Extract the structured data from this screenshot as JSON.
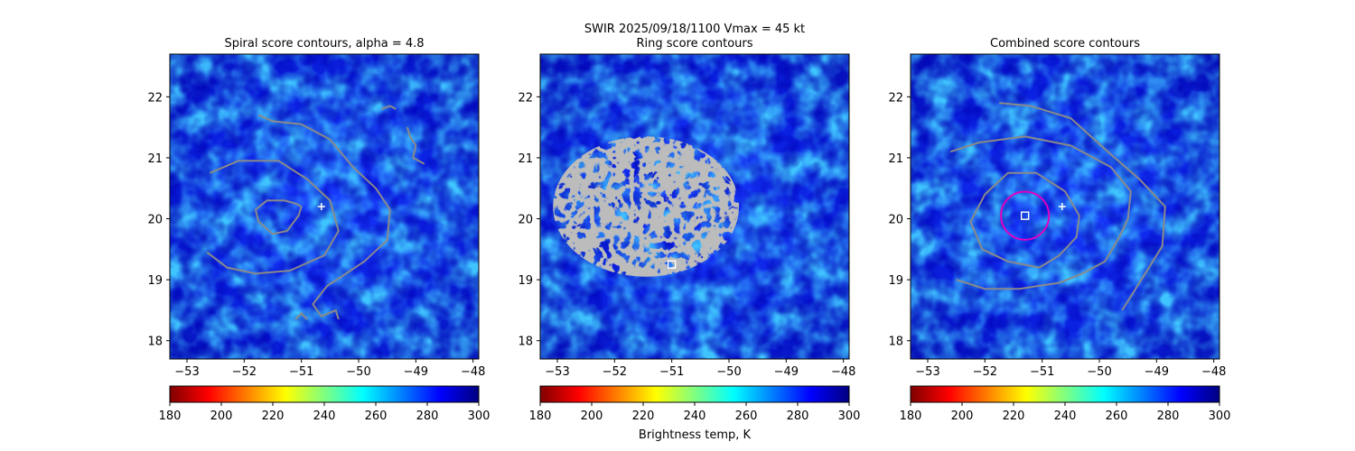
{
  "figure": {
    "suptitle_line1": "SWIR  2025/09/18/1100    Vmax = 45 kt",
    "colorbar_label": "Brightness temp, K"
  },
  "colorbar": {
    "min": 180,
    "max": 300,
    "ticks": [
      "180",
      "200",
      "220",
      "240",
      "260",
      "280",
      "300"
    ],
    "stops": [
      "#800000",
      "#ff0000",
      "#ff8000",
      "#ffff00",
      "#80ff80",
      "#00ffff",
      "#0080ff",
      "#0000ff",
      "#000080"
    ]
  },
  "chart_data": [
    {
      "type": "heatmap",
      "title": "Spiral score contours, alpha =  4.8",
      "xlim": [
        -53.3,
        -47.9
      ],
      "ylim": [
        17.7,
        22.7
      ],
      "xticks": [
        "-53",
        "-52",
        "-51",
        "-50",
        "-49",
        "-48"
      ],
      "yticks": [
        "18",
        "19",
        "20",
        "21",
        "22"
      ],
      "markers": [
        {
          "kind": "plus",
          "x": -50.65,
          "y": 20.2,
          "color": "#ffffff"
        }
      ],
      "contours": [
        [
          [
            -51.0,
            20.2
          ],
          [
            -51.05,
            20.05
          ],
          [
            -51.25,
            19.8
          ],
          [
            -51.5,
            19.75
          ],
          [
            -51.75,
            19.95
          ],
          [
            -51.8,
            20.15
          ],
          [
            -51.6,
            20.3
          ],
          [
            -51.3,
            20.3
          ],
          [
            -51.1,
            20.25
          ],
          [
            -51.0,
            20.2
          ]
        ],
        [
          [
            -52.65,
            19.45
          ],
          [
            -52.3,
            19.2
          ],
          [
            -51.8,
            19.1
          ],
          [
            -51.2,
            19.15
          ],
          [
            -50.6,
            19.4
          ],
          [
            -50.35,
            19.8
          ],
          [
            -50.5,
            20.3
          ],
          [
            -50.9,
            20.65
          ],
          [
            -51.4,
            20.95
          ],
          [
            -52.1,
            20.95
          ],
          [
            -52.6,
            20.75
          ]
        ],
        [
          [
            -51.75,
            21.7
          ],
          [
            -51.5,
            21.6
          ],
          [
            -51.0,
            21.55
          ],
          [
            -50.5,
            21.3
          ],
          [
            -50.1,
            20.85
          ],
          [
            -49.7,
            20.5
          ],
          [
            -49.45,
            20.15
          ],
          [
            -49.5,
            19.65
          ],
          [
            -49.9,
            19.3
          ],
          [
            -50.3,
            19.05
          ],
          [
            -50.55,
            18.9
          ],
          [
            -50.8,
            18.6
          ],
          [
            -50.65,
            18.4
          ],
          [
            -50.4,
            18.5
          ],
          [
            -50.35,
            18.35
          ]
        ],
        [
          [
            -51.1,
            18.35
          ],
          [
            -51.0,
            18.45
          ],
          [
            -50.9,
            18.35
          ]
        ],
        [
          [
            -49.15,
            21.5
          ],
          [
            -49.1,
            21.35
          ],
          [
            -49.0,
            21.2
          ],
          [
            -49.05,
            21.0
          ],
          [
            -48.85,
            20.9
          ]
        ],
        [
          [
            -49.6,
            21.8
          ],
          [
            -49.45,
            21.85
          ],
          [
            -49.35,
            21.8
          ]
        ]
      ]
    },
    {
      "type": "heatmap",
      "title": "Ring score contours",
      "xlim": [
        -53.3,
        -47.9
      ],
      "ylim": [
        17.7,
        22.7
      ],
      "xticks": [
        "-53",
        "-52",
        "-51",
        "-50",
        "-49",
        "-48"
      ],
      "yticks": [
        "18",
        "19",
        "20",
        "21",
        "22"
      ],
      "markers": [
        {
          "kind": "square",
          "x": -51.0,
          "y": 19.25,
          "color": "#ffffff"
        }
      ],
      "contours": []
    },
    {
      "type": "heatmap",
      "title": "Combined score contours",
      "xlim": [
        -53.3,
        -47.9
      ],
      "ylim": [
        17.7,
        22.7
      ],
      "xticks": [
        "-53",
        "-52",
        "-51",
        "-50",
        "-49",
        "-48"
      ],
      "yticks": [
        "18",
        "19",
        "20",
        "21",
        "22"
      ],
      "markers": [
        {
          "kind": "plus",
          "x": -50.65,
          "y": 20.2,
          "color": "#ffffff"
        },
        {
          "kind": "square",
          "x": -51.3,
          "y": 20.05,
          "color": "#ffffff"
        },
        {
          "kind": "circle",
          "x": -51.3,
          "y": 20.05,
          "radius_deg": 0.42,
          "color": "#e000c0"
        }
      ],
      "contours": [
        [
          [
            -51.05,
            19.2
          ],
          [
            -51.6,
            19.3
          ],
          [
            -52.05,
            19.5
          ],
          [
            -52.25,
            19.95
          ],
          [
            -52.0,
            20.4
          ],
          [
            -51.6,
            20.75
          ],
          [
            -51.1,
            20.75
          ],
          [
            -50.6,
            20.45
          ],
          [
            -50.35,
            20.05
          ],
          [
            -50.4,
            19.7
          ],
          [
            -50.7,
            19.4
          ],
          [
            -51.05,
            19.2
          ]
        ],
        [
          [
            -52.5,
            19.0
          ],
          [
            -52.0,
            18.85
          ],
          [
            -51.4,
            18.85
          ],
          [
            -50.7,
            18.95
          ],
          [
            -50.3,
            19.1
          ],
          [
            -49.9,
            19.3
          ],
          [
            -49.65,
            19.7
          ],
          [
            -49.5,
            20.0
          ],
          [
            -49.45,
            20.45
          ],
          [
            -49.8,
            20.85
          ],
          [
            -50.5,
            21.2
          ],
          [
            -51.3,
            21.35
          ],
          [
            -52.1,
            21.25
          ],
          [
            -52.6,
            21.1
          ]
        ],
        [
          [
            -51.75,
            21.9
          ],
          [
            -51.2,
            21.85
          ],
          [
            -50.5,
            21.65
          ],
          [
            -49.85,
            21.1
          ],
          [
            -49.3,
            20.65
          ],
          [
            -48.85,
            20.2
          ],
          [
            -48.9,
            19.55
          ],
          [
            -49.2,
            19.1
          ],
          [
            -49.4,
            18.8
          ],
          [
            -49.6,
            18.5
          ]
        ]
      ]
    }
  ]
}
